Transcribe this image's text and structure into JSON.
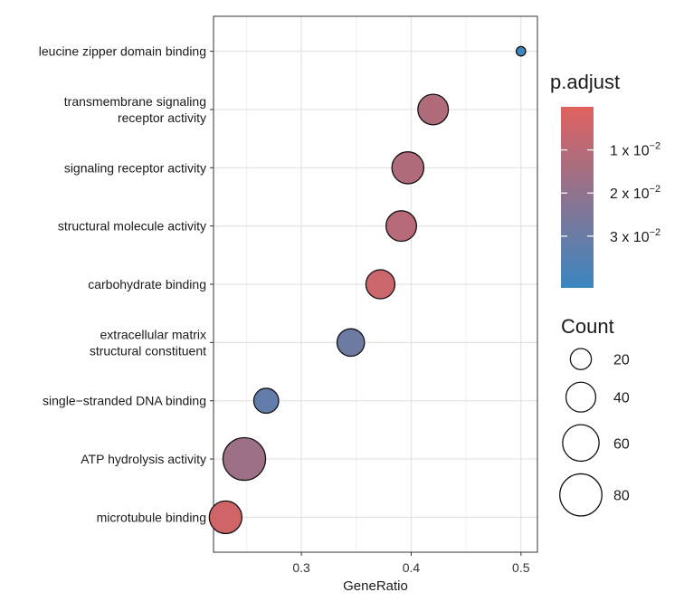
{
  "chart_data": {
    "type": "scatter",
    "subtype": "dot-plot",
    "xlabel": "GeneRatio",
    "ylabel": "",
    "xlim": [
      0.22,
      0.515
    ],
    "xticks": [
      0.3,
      0.4,
      0.5
    ],
    "xtick_labels": [
      "0.3",
      "0.4",
      "0.5"
    ],
    "terms": [
      {
        "label": [
          "leucine zipper domain binding"
        ],
        "gene_ratio": 0.5,
        "count": 4,
        "p_adjust": 0.0405
      },
      {
        "label": [
          "transmembrane signaling",
          "receptor activity"
        ],
        "gene_ratio": 0.42,
        "count": 42,
        "p_adjust": 0.012
      },
      {
        "label": [
          "signaling receptor activity"
        ],
        "gene_ratio": 0.397,
        "count": 46,
        "p_adjust": 0.012
      },
      {
        "label": [
          "structural molecule activity"
        ],
        "gene_ratio": 0.391,
        "count": 42,
        "p_adjust": 0.0105
      },
      {
        "label": [
          "carbohydrate binding"
        ],
        "gene_ratio": 0.372,
        "count": 38,
        "p_adjust": 0.0055
      },
      {
        "label": [
          "extracellular matrix",
          "structural constituent"
        ],
        "gene_ratio": 0.345,
        "count": 34,
        "p_adjust": 0.029
      },
      {
        "label": [
          "single−stranded DNA binding"
        ],
        "gene_ratio": 0.268,
        "count": 28,
        "p_adjust": 0.032
      },
      {
        "label": [
          "ATP hydrolysis activity"
        ],
        "gene_ratio": 0.248,
        "count": 82,
        "p_adjust": 0.017
      },
      {
        "label": [
          "microtubule binding"
        ],
        "gene_ratio": 0.231,
        "count": 48,
        "p_adjust": 0.004
      }
    ],
    "color_legend": {
      "title": "p.adjust",
      "range": [
        0.0,
        0.042
      ],
      "low_color": "#e0615f",
      "high_color": "#3a86c1",
      "ticks": [
        {
          "value": 0.01,
          "base": "1 x 10",
          "exp": "−2"
        },
        {
          "value": 0.02,
          "base": "2 x 10",
          "exp": "−2"
        },
        {
          "value": 0.03,
          "base": "3 x 10",
          "exp": "−2"
        }
      ]
    },
    "size_legend": {
      "title": "Count",
      "entries": [
        {
          "value": 20,
          "label": "20"
        },
        {
          "value": 40,
          "label": "40"
        },
        {
          "value": 60,
          "label": "60"
        },
        {
          "value": 80,
          "label": "80"
        }
      ]
    },
    "grid": true,
    "legend_position": "right"
  }
}
